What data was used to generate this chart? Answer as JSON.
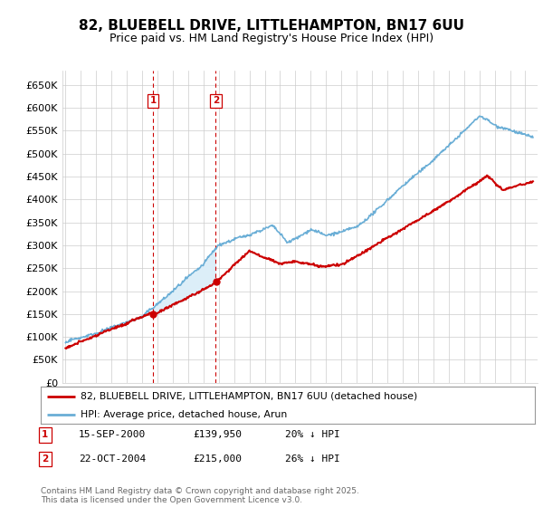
{
  "title": "82, BLUEBELL DRIVE, LITTLEHAMPTON, BN17 6UU",
  "subtitle": "Price paid vs. HM Land Registry's House Price Index (HPI)",
  "ylim": [
    0,
    680000
  ],
  "yticks": [
    0,
    50000,
    100000,
    150000,
    200000,
    250000,
    300000,
    350000,
    400000,
    450000,
    500000,
    550000,
    600000,
    650000
  ],
  "ytick_labels": [
    "£0",
    "£50K",
    "£100K",
    "£150K",
    "£200K",
    "£250K",
    "£300K",
    "£350K",
    "£400K",
    "£450K",
    "£500K",
    "£550K",
    "£600K",
    "£650K"
  ],
  "hpi_color": "#6aaed6",
  "price_color": "#cc0000",
  "shade_color": "#dceef8",
  "vline_color": "#cc0000",
  "background_color": "#ffffff",
  "grid_color": "#cccccc",
  "purchases": [
    {
      "label": "1",
      "date": "15-SEP-2000",
      "price": 139950,
      "x": 2000.71,
      "pct": "20% ↓ HPI"
    },
    {
      "label": "2",
      "date": "22-OCT-2004",
      "price": 215000,
      "x": 2004.8,
      "pct": "26% ↓ HPI"
    }
  ],
  "legend_line1": "82, BLUEBELL DRIVE, LITTLEHAMPTON, BN17 6UU (detached house)",
  "legend_line2": "HPI: Average price, detached house, Arun",
  "footer": "Contains HM Land Registry data © Crown copyright and database right 2025.\nThis data is licensed under the Open Government Licence v3.0.",
  "table_rows": [
    [
      "1",
      "15-SEP-2000",
      "£139,950",
      "20% ↓ HPI"
    ],
    [
      "2",
      "22-OCT-2004",
      "£215,000",
      "26% ↓ HPI"
    ]
  ],
  "xlim_left": 1994.8,
  "xlim_right": 2025.8,
  "xtick_start": 1995,
  "xtick_end": 2025
}
